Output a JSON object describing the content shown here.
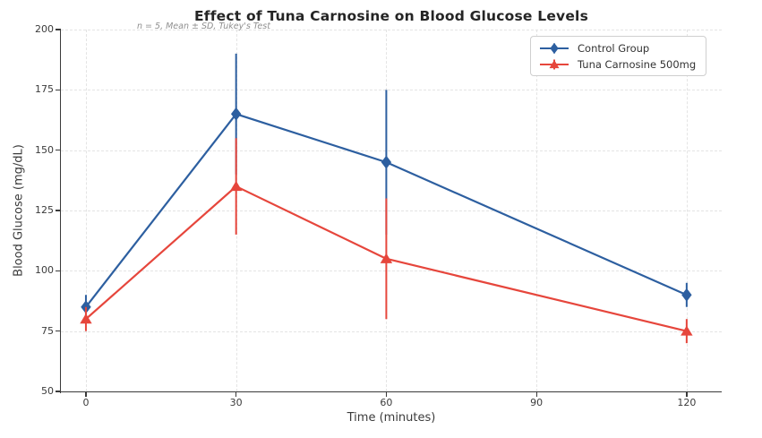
{
  "chart_data": {
    "type": "line",
    "title": "Effect of Tuna Carnosine on Blood Glucose Levels",
    "subtitle": "n = 5, Mean ± SD, Tukey's Test",
    "xlabel": "Time (minutes)",
    "ylabel": "Blood Glucose (mg/dL)",
    "x": [
      0,
      30,
      60,
      120
    ],
    "series": [
      {
        "name": "Control Group",
        "color": "#2d5fa0",
        "marker": "diamond",
        "values": [
          85,
          165,
          145,
          90
        ],
        "sd": [
          5,
          25,
          30,
          5
        ]
      },
      {
        "name": "Tuna Carnosine 500mg",
        "color": "#e6463c",
        "marker": "triangle",
        "values": [
          80,
          135,
          105,
          75
        ],
        "sd": [
          5,
          20,
          25,
          5
        ]
      }
    ],
    "error_bars": "mean ± SD, vertical lines without caps",
    "xlim": [
      -5,
      127
    ],
    "ylim": [
      50,
      200
    ],
    "xticks": [
      0,
      30,
      60,
      90,
      120
    ],
    "yticks": [
      50,
      75,
      100,
      125,
      150,
      175,
      200
    ],
    "grid": true,
    "grid_style": "dashed",
    "legend_position": "upper right"
  },
  "colors": {
    "control_series": "#2d5fa0",
    "treatment_series": "#e6463c",
    "grid": "#e4e4e4",
    "spine": "#3a3a3a",
    "title_text": "#252525",
    "label_text": "#3b3b3b",
    "subtitle_text": "#8f8f8f",
    "legend_border": "#cfcfcf",
    "background": "#ffffff"
  }
}
